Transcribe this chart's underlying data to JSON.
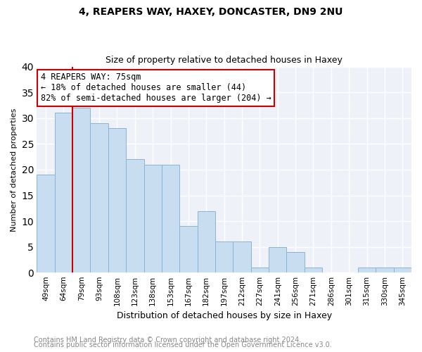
{
  "title": "4, REAPERS WAY, HAXEY, DONCASTER, DN9 2NU",
  "subtitle": "Size of property relative to detached houses in Haxey",
  "xlabel": "Distribution of detached houses by size in Haxey",
  "ylabel": "Number of detached properties",
  "bar_color": "#c8ddf0",
  "bar_edge_color": "#8ab4d8",
  "categories": [
    "49sqm",
    "64sqm",
    "79sqm",
    "93sqm",
    "108sqm",
    "123sqm",
    "138sqm",
    "153sqm",
    "167sqm",
    "182sqm",
    "197sqm",
    "212sqm",
    "227sqm",
    "241sqm",
    "256sqm",
    "271sqm",
    "286sqm",
    "301sqm",
    "315sqm",
    "330sqm",
    "345sqm"
  ],
  "values": [
    19,
    31,
    32,
    29,
    28,
    22,
    21,
    21,
    9,
    12,
    6,
    6,
    1,
    5,
    4,
    1,
    0,
    0,
    1,
    1,
    1
  ],
  "redline_index": 2,
  "annotation_line1": "4 REAPERS WAY: 75sqm",
  "annotation_line2": "← 18% of detached houses are smaller (44)",
  "annotation_line3": "82% of semi-detached houses are larger (204) →",
  "annotation_box_color": "#ffffff",
  "annotation_border_color": "#cc0000",
  "redline_color": "#cc0000",
  "ylim": [
    0,
    40
  ],
  "yticks": [
    0,
    5,
    10,
    15,
    20,
    25,
    30,
    35,
    40
  ],
  "footer1": "Contains HM Land Registry data © Crown copyright and database right 2024.",
  "footer2": "Contains public sector information licensed under the Open Government Licence v3.0.",
  "plot_bg_color": "#eef2f8",
  "fig_bg_color": "#ffffff",
  "grid_color": "#ffffff",
  "title_fontsize": 10,
  "subtitle_fontsize": 9,
  "footer_fontsize": 7,
  "ylabel_fontsize": 8,
  "xlabel_fontsize": 9
}
